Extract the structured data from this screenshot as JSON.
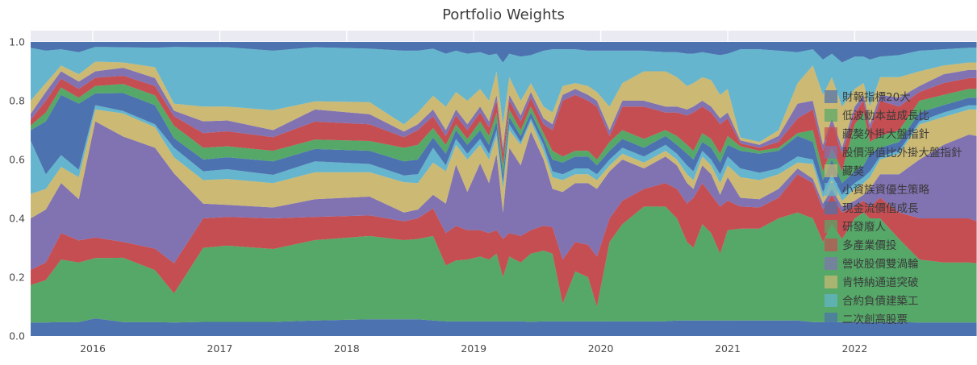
{
  "title": "Portfolio Weights",
  "colors": {
    "figure_bg": "#ffffff",
    "axes_bg": "#eaeaf2",
    "grid": "#ffffff",
    "tick_label": "#4a4a4a",
    "title_color": "#3d3d3d",
    "palette": [
      "#4c72b0",
      "#55a868",
      "#c44e52",
      "#8172b2",
      "#ccb974",
      "#64b5cd"
    ]
  },
  "axes": {
    "x_ticks": [
      {
        "value": 2016,
        "label": "2016"
      },
      {
        "value": 2017,
        "label": "2017"
      },
      {
        "value": 2018,
        "label": "2018"
      },
      {
        "value": 2019,
        "label": "2019"
      },
      {
        "value": 2020,
        "label": "2020"
      },
      {
        "value": 2021,
        "label": "2021"
      },
      {
        "value": 2022,
        "label": "2022"
      }
    ],
    "y_ticks": [
      {
        "value": 0.0,
        "label": "0.0"
      },
      {
        "value": 0.2,
        "label": "0.2"
      },
      {
        "value": 0.4,
        "label": "0.4"
      },
      {
        "value": 0.6,
        "label": "0.6"
      },
      {
        "value": 0.8,
        "label": "0.8"
      },
      {
        "value": 1.0,
        "label": "1.0"
      }
    ]
  },
  "chart_data": {
    "type": "area",
    "stacked": true,
    "normalized": true,
    "title": "Portfolio Weights",
    "xlabel": "",
    "ylabel": "",
    "x_range": [
      2015.51,
      2022.96
    ],
    "ylim": [
      0,
      1.04
    ],
    "grid": true,
    "legend_position": "right-overlay",
    "series": [
      {
        "name": "財報指標20大",
        "color": "#4c72b0"
      },
      {
        "name": "低波動本益成長比",
        "color": "#55a868"
      },
      {
        "name": "藏獒外掛大盤指針",
        "color": "#c44e52"
      },
      {
        "name": "股價淨值比外掛大盤指針",
        "color": "#8172b2"
      },
      {
        "name": "藏獒",
        "color": "#ccb974"
      },
      {
        "name": "小資族資優生策略",
        "color": "#64b5cd"
      },
      {
        "name": "現金流價值成長",
        "color": "#4c72b0"
      },
      {
        "name": "研發廢人",
        "color": "#55a868"
      },
      {
        "name": "多產業價投",
        "color": "#c44e52"
      },
      {
        "name": "營收股價雙渦輪",
        "color": "#8172b2"
      },
      {
        "name": "肯特納通道突破",
        "color": "#ccb974"
      },
      {
        "name": "合約負債建築工",
        "color": "#64b5cd"
      },
      {
        "name": "二次創高股票",
        "color": "#4c72b0"
      }
    ],
    "value_semantics": "Each sample row is [year, cum1..cum12]: cumulative stacked upper boundaries of series 1-12 (fraction of portfolio). Series 13 fills up to 1.0. Individual series weight = cum[i] - cum[i-1].",
    "top_boundary": 1.0,
    "samples": [
      [
        2015.51,
        0.046,
        0.173,
        0.225,
        0.4,
        0.483,
        0.665,
        0.7,
        0.715,
        0.735,
        0.755,
        0.8,
        0.98
      ],
      [
        2015.63,
        0.046,
        0.19,
        0.25,
        0.43,
        0.5,
        0.55,
        0.73,
        0.76,
        0.8,
        0.83,
        0.86,
        0.97
      ],
      [
        2015.75,
        0.047,
        0.26,
        0.35,
        0.52,
        0.575,
        0.615,
        0.82,
        0.845,
        0.875,
        0.9,
        0.92,
        0.975
      ],
      [
        2015.89,
        0.047,
        0.25,
        0.325,
        0.465,
        0.54,
        0.565,
        0.79,
        0.81,
        0.84,
        0.865,
        0.89,
        0.965
      ],
      [
        2016.02,
        0.06,
        0.265,
        0.335,
        0.73,
        0.77,
        0.785,
        0.825,
        0.85,
        0.878,
        0.9,
        0.933,
        0.983
      ],
      [
        2016.24,
        0.047,
        0.266,
        0.32,
        0.678,
        0.757,
        0.765,
        0.826,
        0.857,
        0.885,
        0.912,
        0.93,
        0.982
      ],
      [
        2016.49,
        0.047,
        0.224,
        0.297,
        0.64,
        0.71,
        0.72,
        0.785,
        0.818,
        0.85,
        0.877,
        0.914,
        0.98
      ],
      [
        2016.64,
        0.046,
        0.145,
        0.247,
        0.553,
        0.608,
        0.64,
        0.673,
        0.715,
        0.747,
        0.766,
        0.79,
        0.983
      ],
      [
        2016.87,
        0.048,
        0.3,
        0.4,
        0.45,
        0.53,
        0.56,
        0.6,
        0.64,
        0.69,
        0.73,
        0.78,
        0.982
      ],
      [
        2017.06,
        0.048,
        0.307,
        0.405,
        0.446,
        0.534,
        0.567,
        0.608,
        0.645,
        0.696,
        0.733,
        0.78,
        0.982
      ],
      [
        2017.42,
        0.048,
        0.296,
        0.4,
        0.437,
        0.52,
        0.548,
        0.594,
        0.63,
        0.676,
        0.7,
        0.768,
        0.97
      ],
      [
        2017.75,
        0.053,
        0.326,
        0.405,
        0.465,
        0.557,
        0.594,
        0.636,
        0.668,
        0.729,
        0.77,
        0.798,
        0.982
      ],
      [
        2018.18,
        0.057,
        0.34,
        0.41,
        0.474,
        0.557,
        0.585,
        0.63,
        0.663,
        0.72,
        0.754,
        0.795,
        0.977
      ],
      [
        2018.45,
        0.057,
        0.326,
        0.39,
        0.42,
        0.523,
        0.546,
        0.594,
        0.64,
        0.676,
        0.695,
        0.72,
        0.97
      ],
      [
        2018.56,
        0.057,
        0.33,
        0.4,
        0.43,
        0.52,
        0.55,
        0.6,
        0.65,
        0.7,
        0.72,
        0.76,
        0.97
      ],
      [
        2018.68,
        0.053,
        0.34,
        0.434,
        0.48,
        0.59,
        0.64,
        0.675,
        0.707,
        0.747,
        0.77,
        0.817,
        0.977
      ],
      [
        2018.78,
        0.05,
        0.24,
        0.35,
        0.45,
        0.56,
        0.58,
        0.62,
        0.65,
        0.68,
        0.7,
        0.78,
        0.96
      ],
      [
        2018.86,
        0.05,
        0.257,
        0.374,
        0.583,
        0.65,
        0.67,
        0.7,
        0.72,
        0.75,
        0.77,
        0.83,
        0.97
      ],
      [
        2018.95,
        0.05,
        0.26,
        0.36,
        0.49,
        0.6,
        0.62,
        0.65,
        0.67,
        0.7,
        0.72,
        0.8,
        0.96
      ],
      [
        2019.05,
        0.05,
        0.27,
        0.36,
        0.587,
        0.65,
        0.67,
        0.7,
        0.73,
        0.76,
        0.78,
        0.84,
        0.965
      ],
      [
        2019.12,
        0.05,
        0.26,
        0.35,
        0.52,
        0.6,
        0.62,
        0.65,
        0.68,
        0.71,
        0.73,
        0.8,
        0.955
      ],
      [
        2019.18,
        0.05,
        0.28,
        0.36,
        0.62,
        0.68,
        0.7,
        0.73,
        0.76,
        0.8,
        0.82,
        0.9,
        0.96
      ],
      [
        2019.23,
        0.05,
        0.2,
        0.33,
        0.42,
        0.5,
        0.52,
        0.55,
        0.58,
        0.62,
        0.64,
        0.72,
        0.93
      ],
      [
        2019.28,
        0.05,
        0.27,
        0.35,
        0.64,
        0.7,
        0.72,
        0.745,
        0.77,
        0.8,
        0.82,
        0.88,
        0.96
      ],
      [
        2019.37,
        0.05,
        0.25,
        0.34,
        0.58,
        0.65,
        0.66,
        0.68,
        0.7,
        0.73,
        0.75,
        0.8,
        0.95
      ],
      [
        2019.45,
        0.048,
        0.28,
        0.36,
        0.695,
        0.73,
        0.74,
        0.76,
        0.78,
        0.81,
        0.83,
        0.86,
        0.955
      ],
      [
        2019.55,
        0.05,
        0.29,
        0.375,
        0.6,
        0.63,
        0.65,
        0.67,
        0.69,
        0.72,
        0.74,
        0.78,
        0.97
      ],
      [
        2019.62,
        0.05,
        0.28,
        0.37,
        0.5,
        0.54,
        0.56,
        0.6,
        0.63,
        0.7,
        0.72,
        0.76,
        0.975
      ],
      [
        2019.7,
        0.05,
        0.11,
        0.26,
        0.49,
        0.53,
        0.55,
        0.59,
        0.61,
        0.8,
        0.82,
        0.85,
        0.975
      ],
      [
        2019.8,
        0.05,
        0.22,
        0.32,
        0.52,
        0.55,
        0.57,
        0.61,
        0.63,
        0.82,
        0.84,
        0.86,
        0.975
      ],
      [
        2019.9,
        0.05,
        0.2,
        0.31,
        0.52,
        0.55,
        0.57,
        0.61,
        0.63,
        0.8,
        0.82,
        0.85,
        0.97
      ],
      [
        2019.97,
        0.05,
        0.1,
        0.27,
        0.5,
        0.53,
        0.55,
        0.58,
        0.6,
        0.78,
        0.8,
        0.83,
        0.97
      ],
      [
        2020.07,
        0.05,
        0.32,
        0.4,
        0.56,
        0.58,
        0.6,
        0.63,
        0.66,
        0.68,
        0.7,
        0.78,
        0.97
      ],
      [
        2020.17,
        0.05,
        0.38,
        0.46,
        0.6,
        0.62,
        0.64,
        0.67,
        0.7,
        0.78,
        0.8,
        0.86,
        0.97
      ],
      [
        2020.34,
        0.05,
        0.44,
        0.5,
        0.57,
        0.59,
        0.61,
        0.64,
        0.67,
        0.78,
        0.8,
        0.9,
        0.97
      ],
      [
        2020.51,
        0.05,
        0.44,
        0.52,
        0.61,
        0.63,
        0.65,
        0.68,
        0.7,
        0.76,
        0.78,
        0.9,
        0.965
      ],
      [
        2020.6,
        0.053,
        0.4,
        0.5,
        0.58,
        0.6,
        0.62,
        0.65,
        0.68,
        0.76,
        0.78,
        0.88,
        0.965
      ],
      [
        2020.68,
        0.053,
        0.32,
        0.45,
        0.52,
        0.55,
        0.58,
        0.62,
        0.65,
        0.75,
        0.77,
        0.85,
        0.96
      ],
      [
        2020.73,
        0.053,
        0.3,
        0.47,
        0.5,
        0.53,
        0.56,
        0.6,
        0.63,
        0.76,
        0.78,
        0.86,
        0.96
      ],
      [
        2020.8,
        0.053,
        0.38,
        0.52,
        0.58,
        0.61,
        0.63,
        0.66,
        0.69,
        0.78,
        0.8,
        0.88,
        0.965
      ],
      [
        2020.87,
        0.053,
        0.35,
        0.48,
        0.55,
        0.58,
        0.6,
        0.64,
        0.67,
        0.76,
        0.78,
        0.87,
        0.96
      ],
      [
        2020.94,
        0.053,
        0.28,
        0.44,
        0.48,
        0.52,
        0.55,
        0.59,
        0.62,
        0.72,
        0.74,
        0.82,
        0.955
      ],
      [
        2021.0,
        0.053,
        0.36,
        0.46,
        0.54,
        0.58,
        0.61,
        0.65,
        0.68,
        0.74,
        0.76,
        0.84,
        0.96
      ],
      [
        2021.1,
        0.053,
        0.365,
        0.44,
        0.47,
        0.54,
        0.57,
        0.63,
        0.645,
        0.655,
        0.665,
        0.675,
        0.975
      ],
      [
        2021.25,
        0.053,
        0.365,
        0.437,
        0.465,
        0.53,
        0.555,
        0.62,
        0.63,
        0.64,
        0.65,
        0.66,
        0.975
      ],
      [
        2021.4,
        0.053,
        0.4,
        0.47,
        0.5,
        0.55,
        0.57,
        0.63,
        0.64,
        0.66,
        0.68,
        0.7,
        0.97
      ],
      [
        2021.55,
        0.053,
        0.42,
        0.55,
        0.57,
        0.59,
        0.61,
        0.68,
        0.69,
        0.74,
        0.79,
        0.86,
        0.965
      ],
      [
        2021.67,
        0.047,
        0.4,
        0.52,
        0.535,
        0.585,
        0.6,
        0.66,
        0.7,
        0.77,
        0.8,
        0.92,
        0.975
      ],
      [
        2021.75,
        0.047,
        0.32,
        0.43,
        0.45,
        0.47,
        0.49,
        0.53,
        0.56,
        0.63,
        0.65,
        0.82,
        0.94
      ],
      [
        2021.82,
        0.047,
        0.38,
        0.48,
        0.5,
        0.53,
        0.55,
        0.6,
        0.64,
        0.72,
        0.74,
        0.88,
        0.96
      ],
      [
        2021.9,
        0.047,
        0.33,
        0.42,
        0.44,
        0.46,
        0.48,
        0.52,
        0.56,
        0.62,
        0.64,
        0.78,
        0.93
      ],
      [
        2022.0,
        0.047,
        0.4,
        0.44,
        0.46,
        0.5,
        0.52,
        0.56,
        0.72,
        0.76,
        0.78,
        0.84,
        0.95
      ],
      [
        2022.07,
        0.047,
        0.42,
        0.46,
        0.48,
        0.52,
        0.54,
        0.58,
        0.76,
        0.8,
        0.82,
        0.86,
        0.95
      ],
      [
        2022.12,
        0.047,
        0.4,
        0.44,
        0.5,
        0.54,
        0.56,
        0.62,
        0.66,
        0.7,
        0.72,
        0.78,
        0.94
      ],
      [
        2022.2,
        0.047,
        0.4,
        0.47,
        0.55,
        0.6,
        0.61,
        0.64,
        0.68,
        0.8,
        0.82,
        0.88,
        0.95
      ],
      [
        2022.35,
        0.047,
        0.33,
        0.42,
        0.55,
        0.62,
        0.63,
        0.66,
        0.7,
        0.78,
        0.81,
        0.88,
        0.955
      ],
      [
        2022.51,
        0.046,
        0.26,
        0.4,
        0.6,
        0.72,
        0.73,
        0.76,
        0.8,
        0.83,
        0.85,
        0.9,
        0.97
      ],
      [
        2022.7,
        0.046,
        0.25,
        0.4,
        0.65,
        0.745,
        0.76,
        0.785,
        0.82,
        0.86,
        0.89,
        0.92,
        0.975
      ],
      [
        2022.9,
        0.046,
        0.25,
        0.4,
        0.685,
        0.77,
        0.785,
        0.81,
        0.84,
        0.877,
        0.905,
        0.93,
        0.98
      ],
      [
        2022.96,
        0.046,
        0.247,
        0.39,
        0.68,
        0.77,
        0.785,
        0.81,
        0.84,
        0.877,
        0.905,
        0.93,
        0.98
      ]
    ]
  },
  "legend": {
    "swatch_opacity": 0.7
  }
}
